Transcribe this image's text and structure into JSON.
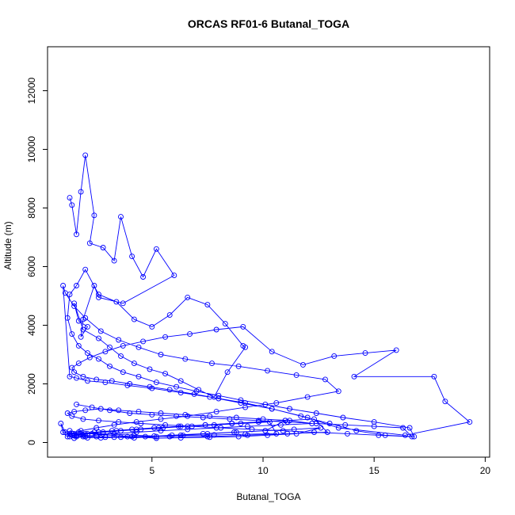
{
  "chart_data": {
    "type": "line",
    "title": "ORCAS RF01-6 Butanal_TOGA",
    "xlabel": "Butanal_TOGA",
    "ylabel": "Altitude (m)",
    "xlim": [
      0.3,
      20.2
    ],
    "ylim": [
      -500,
      13500
    ],
    "x_ticks": [
      5,
      10,
      15,
      20
    ],
    "y_ticks": [
      0,
      2000,
      4000,
      6000,
      8000,
      10000,
      12000
    ],
    "grid": false,
    "legend": "none",
    "markers": "open-circle",
    "series_color": "#0000ff",
    "series": [
      {
        "x": [
          1.3,
          1.4,
          1.6,
          1.8,
          2.0,
          2.4,
          2.2,
          2.8,
          3.3,
          3.6,
          4.1,
          4.6,
          5.2,
          6.0,
          3.7,
          2.6,
          2.4,
          1.9,
          1.8,
          2.1,
          1.7,
          1.5,
          1.9,
          2.6,
          3.1,
          3.6,
          4.2,
          4.9,
          5.6,
          6.3,
          7.1,
          7.8,
          8.4,
          9.2,
          9.1,
          8.3,
          7.5,
          6.6,
          5.8,
          5.0,
          4.2,
          3.4,
          2.6,
          2.0,
          1.6,
          1.3,
          1.2,
          1.4,
          1.7,
          2.1,
          2.6,
          3.1,
          3.7,
          4.4,
          5.2,
          6.1,
          7.0,
          8.0,
          9.0,
          10.1,
          11.2,
          12.4,
          13.6,
          15.0,
          16.6,
          16.8,
          15.5,
          14.2,
          13.0,
          11.7,
          10.4,
          9.2,
          8.0,
          6.9,
          5.8,
          4.9,
          4.0,
          3.2,
          2.5,
          1.9,
          1.5,
          1.4,
          1.7,
          2.2,
          2.9,
          3.7,
          4.6,
          5.6,
          6.7,
          7.9,
          9.1,
          10.4,
          11.8,
          13.2,
          14.6,
          16.0,
          14.1,
          17.7,
          18.2,
          19.3,
          16.4,
          13.4,
          12.0,
          10.4,
          9.0,
          7.6,
          6.3,
          5.0,
          3.9,
          2.9,
          2.1,
          1.6,
          1.3,
          1.0,
          1.1,
          1.5,
          2.0,
          2.7,
          3.5,
          4.4,
          5.4,
          6.5,
          7.7,
          8.9,
          10.2,
          11.5,
          12.8,
          13.4,
          12.0,
          10.6,
          9.2,
          7.9,
          6.6,
          5.4,
          4.3,
          3.3,
          2.5,
          1.8,
          1.3,
          1.2,
          1.5,
          2.0,
          2.6,
          3.4,
          4.3,
          5.3,
          6.3,
          7.4,
          8.6,
          9.8,
          11.0,
          12.3,
          12.9,
          11.1,
          9.3,
          7.5,
          5.8,
          4.2,
          2.8,
          1.8,
          1.2
        ],
        "y": [
          8350,
          8100,
          7100,
          8550,
          9800,
          7750,
          6800,
          6650,
          6200,
          7700,
          6350,
          5650,
          6600,
          5700,
          4750,
          4950,
          5350,
          4200,
          3600,
          3950,
          4150,
          4750,
          3850,
          3550,
          3250,
          2950,
          2700,
          2500,
          2350,
          2100,
          1800,
          1550,
          2400,
          3250,
          3300,
          4050,
          4700,
          4950,
          4350,
          3950,
          4200,
          4800,
          5050,
          5900,
          5350,
          5050,
          4250,
          3700,
          3300,
          3050,
          2850,
          2600,
          2400,
          2250,
          2050,
          1900,
          1750,
          1600,
          1450,
          1300,
          1150,
          1000,
          850,
          700,
          500,
          200,
          250,
          400,
          650,
          900,
          1150,
          1350,
          1500,
          1650,
          1800,
          1900,
          2000,
          2100,
          2150,
          2250,
          2400,
          2550,
          2700,
          2900,
          3100,
          3300,
          3450,
          3600,
          3700,
          3850,
          3950,
          3100,
          2650,
          2950,
          3050,
          3150,
          2250,
          2250,
          1400,
          700,
          250,
          500,
          850,
          1150,
          1350,
          1550,
          1700,
          1850,
          1950,
          2050,
          2100,
          2200,
          2250,
          5350,
          5100,
          4650,
          4250,
          3800,
          3500,
          3250,
          3000,
          2850,
          2700,
          2600,
          2450,
          2300,
          2150,
          1750,
          1550,
          1350,
          1200,
          1050,
          900,
          800,
          700,
          600,
          500,
          400,
          300,
          200,
          250,
          300,
          350,
          400,
          450,
          500,
          550,
          600,
          650,
          700,
          750,
          800,
          350,
          300,
          250,
          200,
          200,
          250,
          300,
          300,
          300
        ]
      },
      {
        "x": [
          1.6,
          2.3,
          3.1,
          4.0,
          5.0,
          6.1,
          7.3,
          8.5,
          9.8,
          11.1,
          12.4,
          13.7,
          15.0,
          16.3,
          16.7,
          15.2,
          13.8,
          12.3,
          10.9,
          9.5,
          8.1,
          6.8,
          5.6,
          4.5,
          3.5,
          2.6,
          1.9,
          1.4,
          1.2,
          1.5,
          2.0,
          2.7,
          3.5,
          4.4,
          5.4,
          6.5,
          7.6,
          8.8,
          10.0,
          11.2,
          12.2,
          10.8,
          9.3,
          7.9,
          6.6,
          5.4,
          4.3,
          3.3,
          2.5,
          1.9,
          1.5,
          1.3,
          1.6,
          2.1,
          2.8,
          3.6,
          4.5,
          5.5,
          6.6,
          7.8,
          9.0,
          10.3,
          10.6,
          9.2,
          7.8,
          6.4,
          5.1,
          3.9,
          2.9,
          2.1,
          1.6,
          1.4,
          1.8,
          2.4,
          3.2,
          4.1,
          5.1,
          6.2,
          7.4,
          8.6,
          9.8,
          11.0,
          10.1,
          8.7,
          7.3,
          5.9,
          4.7,
          3.6,
          2.7,
          2.0,
          1.5,
          1.1,
          0.9,
          1.0,
          1.4,
          1.9,
          2.5,
          3.3,
          4.2,
          5.2,
          6.3,
          7.5,
          8.8,
          10.1,
          11.4,
          12.6,
          11.5,
          10.2,
          8.9,
          7.6,
          6.3,
          5.2,
          4.1,
          3.1,
          2.3,
          1.7,
          1.3
        ],
        "y": [
          1300,
          1200,
          1100,
          1000,
          950,
          900,
          850,
          800,
          750,
          700,
          650,
          600,
          550,
          500,
          200,
          250,
          300,
          350,
          400,
          450,
          500,
          550,
          600,
          650,
          700,
          750,
          800,
          900,
          1000,
          1050,
          1100,
          1150,
          1100,
          1050,
          1000,
          950,
          900,
          850,
          800,
          750,
          650,
          600,
          550,
          500,
          450,
          400,
          350,
          300,
          250,
          200,
          150,
          200,
          250,
          300,
          350,
          400,
          450,
          500,
          550,
          600,
          650,
          700,
          300,
          280,
          260,
          240,
          220,
          200,
          180,
          160,
          200,
          250,
          300,
          350,
          400,
          450,
          500,
          550,
          600,
          650,
          700,
          750,
          400,
          350,
          300,
          250,
          200,
          180,
          160,
          200,
          250,
          350,
          650,
          350,
          300,
          250,
          200,
          180,
          160,
          200,
          250,
          300,
          350,
          400,
          450,
          500,
          300,
          250,
          200,
          180,
          160,
          150,
          200,
          250,
          300,
          350,
          400
        ]
      }
    ]
  }
}
